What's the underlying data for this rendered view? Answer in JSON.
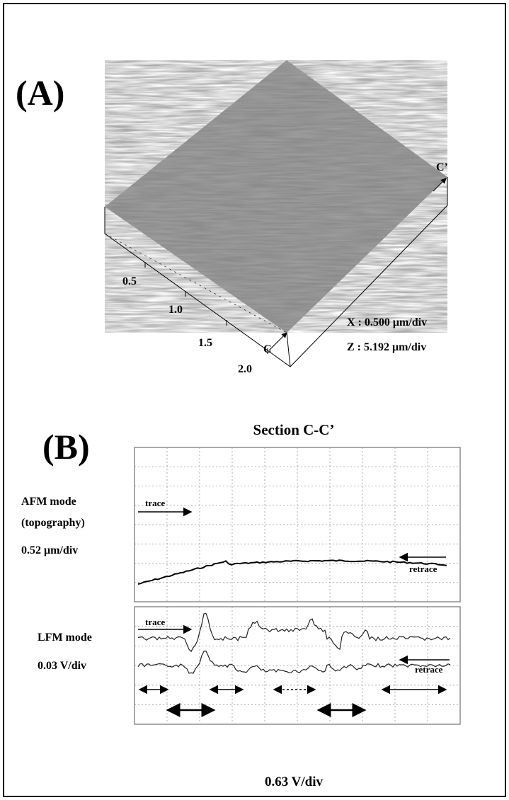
{
  "panel_a": {
    "label": "(A)",
    "end_label": "C’",
    "start_label": "C",
    "axis_ticks": [
      "0.5",
      "1.0",
      "1.5",
      "2.0"
    ],
    "x_scale": "X : 0.500 μm/div",
    "z_scale": "Z : 5.192 μm/div"
  },
  "panel_b": {
    "label": "(B)",
    "title": "Section C-C’",
    "afm": {
      "mode": "AFM mode",
      "subtitle": "(topography)",
      "scale": "0.52 μm/div",
      "trace": "trace",
      "retrace": "retrace"
    },
    "lfm": {
      "mode": "LFM mode",
      "scale": "0.03 V/div",
      "trace": "trace",
      "retrace": "retrace"
    },
    "x_scale": "0.63 V/div"
  }
}
